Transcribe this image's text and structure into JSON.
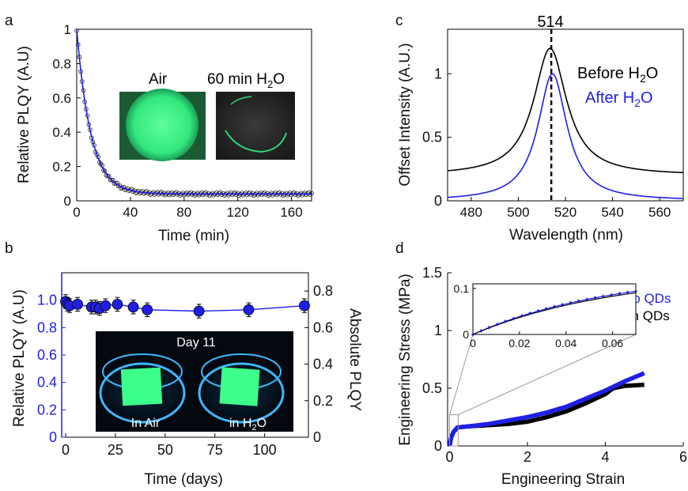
{
  "colors": {
    "blue": "#1f1fe6",
    "black": "#000000",
    "qd_green": "#3cff8c",
    "grey": "#888888"
  },
  "chart_data": [
    {
      "panel": "a",
      "type": "scatter",
      "xlabel": "Time (min)",
      "ylabel": "Relative PLQY (A.U)",
      "xlim": [
        0,
        175
      ],
      "ylim": [
        0,
        1.0
      ],
      "xticks": [
        0,
        40,
        80,
        120,
        160
      ],
      "yticks": [
        0,
        0.2,
        0.4,
        0.6,
        0.8,
        1
      ],
      "xtick_labels": [
        "0",
        "40",
        "80",
        "120",
        "160"
      ],
      "ytick_labels": [
        "0",
        "0.2",
        "0.4",
        "0.6",
        "0.8",
        "1"
      ],
      "series": [
        {
          "color": "#1f1fe6",
          "model": {
            "y0": 1.0,
            "plateau": 0.04,
            "tau_min": 10.5
          },
          "samples": 176
        }
      ],
      "inset_labels": {
        "air": "Air",
        "water": "60 min H",
        "water_sub": "2",
        "water_tail": "O"
      }
    },
    {
      "panel": "b",
      "type": "line",
      "xlabel": "Time (days)",
      "ylabel_left": "Relative PLQY (A.U)",
      "ylabel_right": "Absolute PLQY",
      "xlim": [
        -2,
        122
      ],
      "ylim_left": [
        0,
        1.2
      ],
      "ylim_right": [
        0,
        0.9
      ],
      "xticks": [
        0,
        25,
        50,
        75,
        100
      ],
      "xtick_labels": [
        "0",
        "25",
        "50",
        "75",
        "100"
      ],
      "yticks_left": [
        0,
        0.2,
        0.4,
        0.6,
        0.8,
        1.0
      ],
      "ytick_labels_left": [
        "0",
        "0.2",
        "0.4",
        "0.6",
        "0.8",
        "1.0"
      ],
      "yticks_right": [
        0,
        0.2,
        0.4,
        0.6,
        0.8
      ],
      "ytick_labels_right": [
        "0",
        "0.2",
        "0.4",
        "0.6",
        "0.8"
      ],
      "points": [
        {
          "x": 0,
          "y": 0.99
        },
        {
          "x": 1,
          "y": 0.97
        },
        {
          "x": 2,
          "y": 0.96
        },
        {
          "x": 6,
          "y": 0.97
        },
        {
          "x": 13,
          "y": 0.95
        },
        {
          "x": 15,
          "y": 0.95
        },
        {
          "x": 17,
          "y": 0.94
        },
        {
          "x": 20,
          "y": 0.96
        },
        {
          "x": 26,
          "y": 0.97
        },
        {
          "x": 34,
          "y": 0.95
        },
        {
          "x": 41,
          "y": 0.93
        },
        {
          "x": 67,
          "y": 0.92
        },
        {
          "x": 92,
          "y": 0.93
        },
        {
          "x": 120,
          "y": 0.96
        }
      ],
      "error": 0.05,
      "inset_labels": {
        "day": "Day 11",
        "air": "In Air",
        "water": "in H",
        "water_sub": "2",
        "water_tail": "O"
      }
    },
    {
      "panel": "c",
      "type": "line",
      "xlabel": "Wavelength (nm)",
      "ylabel": "Offset Intensity (A.U.)",
      "xlim": [
        470,
        570
      ],
      "ylim": [
        0,
        1.35
      ],
      "xticks": [
        480,
        500,
        520,
        540,
        560
      ],
      "xtick_labels": [
        "480",
        "500",
        "520",
        "540",
        "560"
      ],
      "yticks": [
        0,
        0.5,
        1
      ],
      "ytick_labels": [
        "0",
        "0.5",
        "1"
      ],
      "peak_label": "514",
      "peak_x": 514,
      "series": [
        {
          "name": "Before H",
          "name_sub": "2",
          "name_tail": "O",
          "color": "#000000",
          "center": 513.5,
          "width": 8.5,
          "amplitude": 1.0,
          "offset": 0.2
        },
        {
          "name": "After H",
          "name_sub": "2",
          "name_tail": "O",
          "color": "#1f1fe6",
          "center": 514.5,
          "width": 7.5,
          "amplitude": 1.0,
          "offset": 0.0
        }
      ]
    },
    {
      "panel": "d",
      "type": "scatter",
      "xlabel": "Engineering Strain",
      "ylabel": "Engineering Stress (MPa)",
      "xlim": [
        -0.05,
        6
      ],
      "ylim": [
        0,
        1.5
      ],
      "xticks": [
        0,
        2,
        4,
        6
      ],
      "xtick_labels": [
        "0",
        "2",
        "4",
        "6"
      ],
      "yticks": [
        0,
        0.5,
        1,
        1.5
      ],
      "ytick_labels": [
        "0",
        "0.5",
        "1",
        "1.5"
      ],
      "series": [
        {
          "name": "No QDs",
          "color": "#1f1fe6",
          "points": [
            [
              0,
              0
            ],
            [
              0.04,
              0.07
            ],
            [
              0.1,
              0.12
            ],
            [
              0.2,
              0.16
            ],
            [
              0.5,
              0.17
            ],
            [
              1,
              0.19
            ],
            [
              1.5,
              0.22
            ],
            [
              2,
              0.25
            ],
            [
              2.5,
              0.29
            ],
            [
              3,
              0.34
            ],
            [
              3.5,
              0.41
            ],
            [
              4,
              0.48
            ],
            [
              4.5,
              0.56
            ],
            [
              5,
              0.63
            ]
          ]
        },
        {
          "name": "With QDs",
          "color": "#000000",
          "points": [
            [
              0,
              0
            ],
            [
              0.04,
              0.07
            ],
            [
              0.1,
              0.12
            ],
            [
              0.2,
              0.16
            ],
            [
              0.5,
              0.17
            ],
            [
              1,
              0.18
            ],
            [
              1.5,
              0.19
            ],
            [
              2,
              0.21
            ],
            [
              2.5,
              0.25
            ],
            [
              3,
              0.3
            ],
            [
              3.5,
              0.37
            ],
            [
              4,
              0.45
            ],
            [
              4.2,
              0.5
            ],
            [
              4.5,
              0.52
            ],
            [
              5,
              0.53
            ]
          ]
        }
      ],
      "inset": {
        "xlim": [
          0,
          0.07
        ],
        "ylim": [
          0,
          0.11
        ],
        "xticks": [
          0,
          0.02,
          0.04,
          0.06
        ],
        "xtick_labels": [
          "0",
          "0.02",
          "0.04",
          "0.06"
        ],
        "yticks": [
          0,
          0.1
        ],
        "ytick_labels": [
          "0",
          "0.1"
        ],
        "error": 0.004
      }
    }
  ]
}
